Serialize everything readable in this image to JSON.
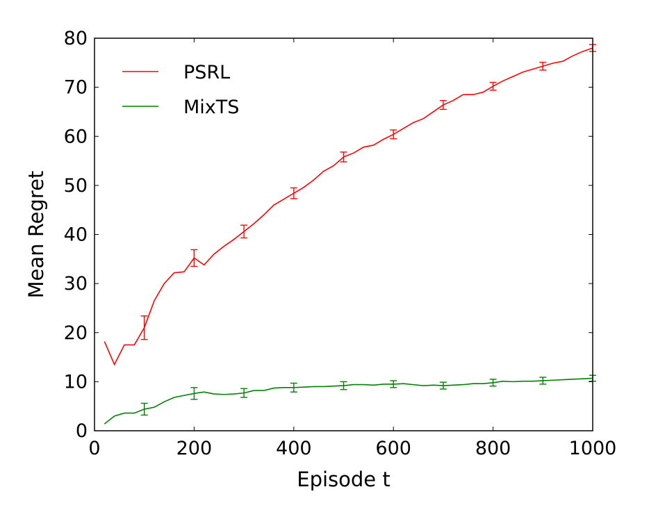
{
  "chart_data": {
    "type": "line",
    "title": "",
    "xlabel": "Episode t",
    "ylabel": "Mean Regret",
    "xlim": [
      0,
      1000
    ],
    "ylim": [
      0,
      80
    ],
    "xticks": [
      0,
      200,
      400,
      600,
      800,
      1000
    ],
    "yticks": [
      0,
      10,
      20,
      30,
      40,
      50,
      60,
      70,
      80
    ],
    "grid": false,
    "legend_position": "top-left",
    "series": [
      {
        "name": "PSRL",
        "color": "#ff0000",
        "x": [
          20,
          40,
          60,
          80,
          100,
          120,
          140,
          160,
          180,
          200,
          220,
          240,
          260,
          280,
          300,
          320,
          340,
          360,
          380,
          400,
          420,
          440,
          460,
          480,
          500,
          520,
          540,
          560,
          580,
          600,
          620,
          640,
          660,
          680,
          700,
          720,
          740,
          760,
          780,
          800,
          820,
          840,
          860,
          880,
          900,
          920,
          940,
          960,
          980,
          1000
        ],
        "y": [
          18.2,
          13.5,
          17.5,
          17.5,
          21.0,
          26.5,
          30.0,
          32.2,
          32.4,
          35.2,
          33.8,
          36.0,
          37.6,
          39.0,
          40.6,
          42.2,
          44.0,
          46.0,
          47.2,
          48.4,
          49.6,
          51.1,
          52.9,
          54.0,
          55.8,
          56.6,
          57.8,
          58.2,
          59.4,
          60.4,
          61.6,
          62.8,
          63.6,
          65.0,
          66.4,
          67.3,
          68.5,
          68.5,
          69.0,
          70.2,
          71.3,
          72.2,
          73.1,
          73.7,
          74.3,
          74.9,
          75.3,
          76.4,
          77.3,
          78.0
        ],
        "error_bars": [
          {
            "x": 100,
            "y": 21.0,
            "err": 2.4
          },
          {
            "x": 200,
            "y": 35.2,
            "err": 1.7
          },
          {
            "x": 300,
            "y": 40.6,
            "err": 1.3
          },
          {
            "x": 400,
            "y": 48.4,
            "err": 1.1
          },
          {
            "x": 500,
            "y": 55.8,
            "err": 1.0
          },
          {
            "x": 600,
            "y": 60.4,
            "err": 0.9
          },
          {
            "x": 700,
            "y": 66.4,
            "err": 0.9
          },
          {
            "x": 800,
            "y": 70.2,
            "err": 0.8
          },
          {
            "x": 900,
            "y": 74.3,
            "err": 0.8
          },
          {
            "x": 1000,
            "y": 78.0,
            "err": 0.7
          }
        ]
      },
      {
        "name": "MixTS",
        "color": "#008000",
        "x": [
          20,
          40,
          60,
          80,
          100,
          120,
          140,
          160,
          180,
          200,
          220,
          240,
          260,
          280,
          300,
          320,
          340,
          360,
          380,
          400,
          420,
          440,
          460,
          480,
          500,
          520,
          540,
          560,
          580,
          600,
          620,
          640,
          660,
          680,
          700,
          720,
          740,
          760,
          780,
          800,
          820,
          840,
          860,
          880,
          900,
          920,
          940,
          960,
          980,
          1000
        ],
        "y": [
          1.4,
          3.0,
          3.6,
          3.6,
          4.4,
          4.8,
          5.9,
          6.8,
          7.2,
          7.6,
          7.9,
          7.5,
          7.4,
          7.5,
          7.7,
          8.2,
          8.2,
          8.7,
          8.8,
          8.8,
          8.9,
          9.0,
          9.0,
          9.1,
          9.2,
          9.4,
          9.4,
          9.3,
          9.5,
          9.5,
          9.6,
          9.4,
          9.2,
          9.3,
          9.2,
          9.3,
          9.4,
          9.6,
          9.6,
          9.8,
          10.1,
          10.0,
          10.1,
          10.1,
          10.2,
          10.3,
          10.4,
          10.5,
          10.6,
          10.7
        ],
        "error_bars": [
          {
            "x": 100,
            "y": 4.4,
            "err": 1.2
          },
          {
            "x": 200,
            "y": 7.6,
            "err": 1.2
          },
          {
            "x": 300,
            "y": 7.7,
            "err": 0.9
          },
          {
            "x": 400,
            "y": 8.8,
            "err": 0.9
          },
          {
            "x": 500,
            "y": 9.2,
            "err": 0.8
          },
          {
            "x": 600,
            "y": 9.5,
            "err": 0.7
          },
          {
            "x": 700,
            "y": 9.2,
            "err": 0.7
          },
          {
            "x": 800,
            "y": 9.8,
            "err": 0.7
          },
          {
            "x": 900,
            "y": 10.2,
            "err": 0.7
          },
          {
            "x": 1000,
            "y": 10.7,
            "err": 0.6
          }
        ]
      }
    ]
  }
}
